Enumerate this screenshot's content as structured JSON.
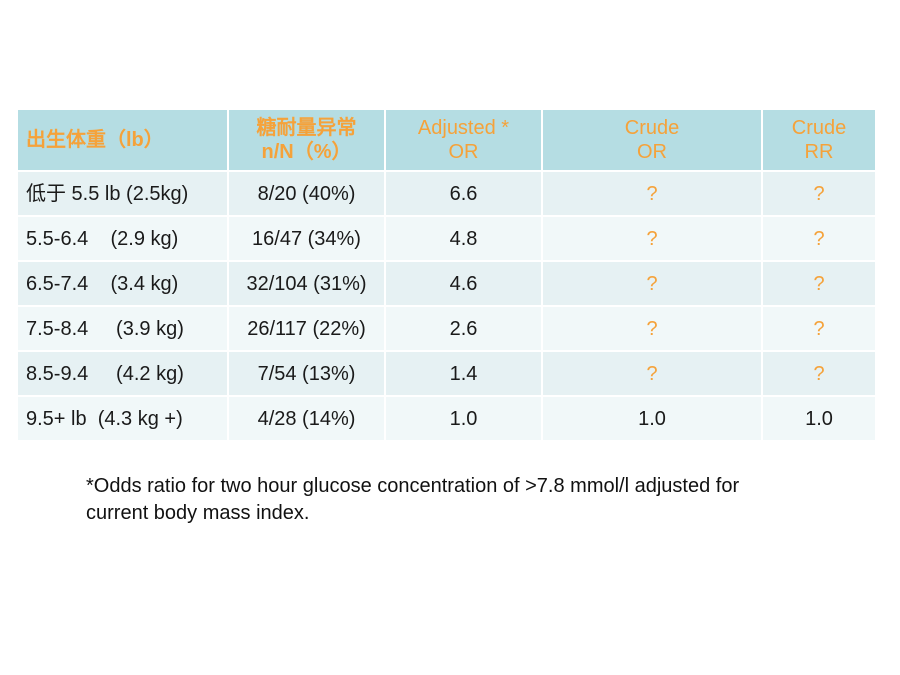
{
  "table": {
    "headers": [
      {
        "lines": [
          "出生体重（lb）"
        ],
        "bold": true
      },
      {
        "lines": [
          "糖耐量异常",
          "n/N（%）"
        ],
        "bold": true
      },
      {
        "lines": [
          "Adjusted *",
          "OR"
        ],
        "bold": false
      },
      {
        "lines": [
          "Crude",
          "OR"
        ],
        "bold": false
      },
      {
        "lines": [
          "Crude",
          "RR"
        ],
        "bold": false
      }
    ],
    "rows": [
      [
        "低于 5.5 lb (2.5kg)",
        "8/20 (40%)",
        "6.6",
        "?",
        "?"
      ],
      [
        "5.5-6.4    (2.9 kg)",
        "16/47 (34%)",
        "4.8",
        "?",
        "?"
      ],
      [
        "6.5-7.4    (3.4 kg)",
        "32/104 (31%)",
        "4.6",
        "?",
        "?"
      ],
      [
        "7.5-8.4     (3.9 kg)",
        "26/117 (22%)",
        "2.6",
        "?",
        "?"
      ],
      [
        "8.5-9.4     (4.2 kg)",
        "7/54 (13%)",
        "1.4",
        "?",
        "?"
      ],
      [
        "9.5+ lb  (4.3 kg +)",
        "4/28 (14%)",
        "1.0",
        "1.0",
        "1.0"
      ]
    ]
  },
  "footnote": {
    "line1": "*Odds ratio for two hour glucose concentration of >7.8 mmol/l adjusted for",
    "line2": "current body mass index."
  },
  "colors": {
    "header_bg": "#b5dde3",
    "header_text": "#f5a23a",
    "row_bg_a": "#e6f1f3",
    "row_bg_b": "#f1f8f9",
    "question_mark": "#f5a23a"
  }
}
